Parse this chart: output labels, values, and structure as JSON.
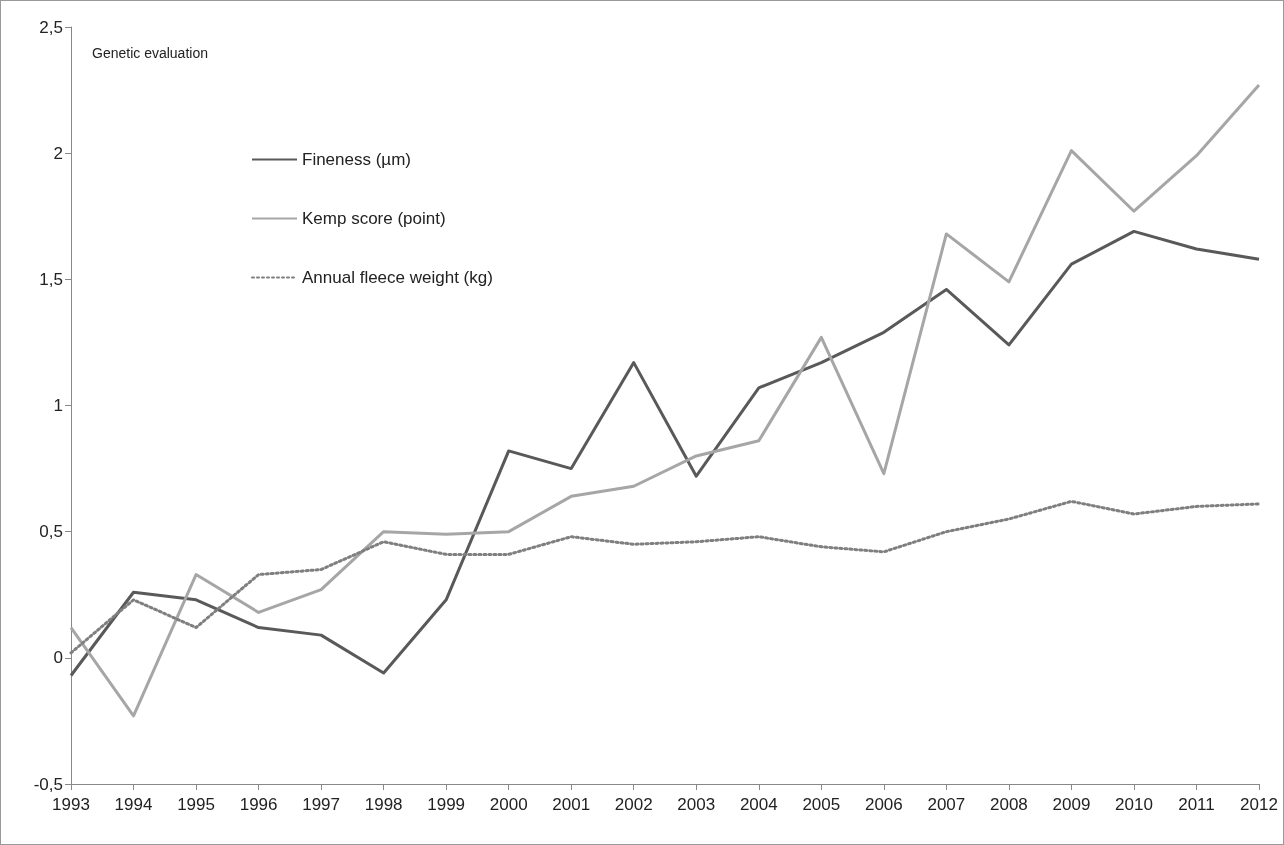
{
  "chart_data": {
    "type": "line",
    "ylabel": "Genetic evaluation",
    "categories": [
      "1993",
      "1994",
      "1995",
      "1996",
      "1997",
      "1998",
      "1999",
      "2000",
      "2001",
      "2002",
      "2003",
      "2004",
      "2005",
      "2006",
      "2007",
      "2008",
      "2009",
      "2010",
      "2011",
      "2012"
    ],
    "series": [
      {
        "name": "Fineness (µm)",
        "color": "#595959",
        "line_style": "solid",
        "values": [
          -0.07,
          0.26,
          0.23,
          0.12,
          0.09,
          -0.06,
          0.23,
          0.82,
          0.75,
          1.17,
          0.72,
          1.07,
          1.17,
          1.29,
          1.46,
          1.24,
          1.56,
          1.69,
          1.62,
          1.58
        ]
      },
      {
        "name": "Kemp score (point)",
        "color": "#a6a6a6",
        "line_style": "solid",
        "values": [
          0.12,
          -0.23,
          0.33,
          0.18,
          0.27,
          0.5,
          0.49,
          0.5,
          0.64,
          0.68,
          0.8,
          0.86,
          1.27,
          0.73,
          1.68,
          1.49,
          2.01,
          1.77,
          1.99,
          2.27
        ]
      },
      {
        "name": "Annual fleece weight (kg)",
        "color": "#7f7f7f",
        "line_style": "dotted",
        "values": [
          0.02,
          0.23,
          0.12,
          0.33,
          0.35,
          0.46,
          0.41,
          0.41,
          0.48,
          0.45,
          0.46,
          0.48,
          0.44,
          0.42,
          0.5,
          0.55,
          0.62,
          0.57,
          0.6,
          0.61
        ]
      }
    ],
    "ylim": [
      -0.5,
      2.5
    ],
    "yticks": [
      {
        "value": -0.5,
        "label": "-0,5"
      },
      0,
      {
        "value": 0.5,
        "label": "0,5"
      },
      1,
      {
        "value": 1.5,
        "label": "1,5"
      },
      2,
      {
        "value": 2.5,
        "label": "2,5"
      }
    ],
    "grid": false,
    "legend": "top left",
    "marker": "none"
  }
}
